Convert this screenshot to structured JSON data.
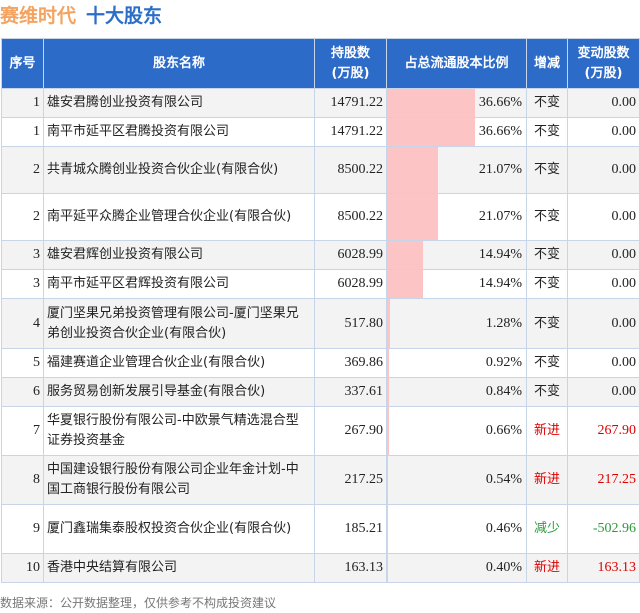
{
  "title": {
    "company": "赛维时代",
    "subtitle": "十大股东"
  },
  "headers": [
    "序号",
    "股东名称",
    "持股数\n(万股)",
    "占总流通股本比例",
    "增减",
    "变动股数\n(万股)"
  ],
  "colors": {
    "header_bg": "#2d6bc9",
    "bar": "#fcc4c4",
    "increase": "#e00000",
    "decrease": "#2a9a3a"
  },
  "rows": [
    {
      "rank": "1",
      "name": "雄安君腾创业投资有限公司",
      "shares": "14791.22",
      "pct": "36.66%",
      "pct_value": 36.66,
      "change": "不变",
      "delta": "0.00",
      "type": "same"
    },
    {
      "rank": "1",
      "name": "南平市延平区君腾投资有限公司",
      "shares": "14791.22",
      "pct": "36.66%",
      "pct_value": 36.66,
      "change": "不变",
      "delta": "0.00",
      "type": "same"
    },
    {
      "rank": "2",
      "name": "共青城众腾创业投资合伙企业(有限合伙)",
      "shares": "8500.22",
      "pct": "21.07%",
      "pct_value": 21.07,
      "change": "不变",
      "delta": "0.00",
      "type": "same"
    },
    {
      "rank": "2",
      "name": "南平延平众腾企业管理合伙企业(有限合伙)",
      "shares": "8500.22",
      "pct": "21.07%",
      "pct_value": 21.07,
      "change": "不变",
      "delta": "0.00",
      "type": "same"
    },
    {
      "rank": "3",
      "name": "雄安君辉创业投资有限公司",
      "shares": "6028.99",
      "pct": "14.94%",
      "pct_value": 14.94,
      "change": "不变",
      "delta": "0.00",
      "type": "same"
    },
    {
      "rank": "3",
      "name": "南平市延平区君辉投资有限公司",
      "shares": "6028.99",
      "pct": "14.94%",
      "pct_value": 14.94,
      "change": "不变",
      "delta": "0.00",
      "type": "same"
    },
    {
      "rank": "4",
      "name": "厦门坚果兄弟投资管理有限公司-厦门坚果兄弟创业投资合伙企业(有限合伙)",
      "shares": "517.80",
      "pct": "1.28%",
      "pct_value": 1.28,
      "change": "不变",
      "delta": "0.00",
      "type": "same"
    },
    {
      "rank": "5",
      "name": "福建赛道企业管理合伙企业(有限合伙)",
      "shares": "369.86",
      "pct": "0.92%",
      "pct_value": 0.92,
      "change": "不变",
      "delta": "0.00",
      "type": "same"
    },
    {
      "rank": "6",
      "name": "服务贸易创新发展引导基金(有限合伙)",
      "shares": "337.61",
      "pct": "0.84%",
      "pct_value": 0.84,
      "change": "不变",
      "delta": "0.00",
      "type": "same"
    },
    {
      "rank": "7",
      "name": "华夏银行股份有限公司-中欧景气精选混合型证券投资基金",
      "shares": "267.90",
      "pct": "0.66%",
      "pct_value": 0.66,
      "change": "新进",
      "delta": "267.90",
      "type": "up"
    },
    {
      "rank": "8",
      "name": "中国建设银行股份有限公司企业年金计划-中国工商银行股份有限公司",
      "shares": "217.25",
      "pct": "0.54%",
      "pct_value": 0.54,
      "change": "新进",
      "delta": "217.25",
      "type": "up"
    },
    {
      "rank": "9",
      "name": "厦门鑫瑞集泰股权投资合伙企业(有限合伙)",
      "shares": "185.21",
      "pct": "0.46%",
      "pct_value": 0.46,
      "change": "减少",
      "delta": "-502.96",
      "type": "down"
    },
    {
      "rank": "10",
      "name": "香港中央结算有限公司",
      "shares": "163.13",
      "pct": "0.40%",
      "pct_value": 0.4,
      "change": "新进",
      "delta": "163.13",
      "type": "up"
    }
  ],
  "footer": "数据来源：公开数据整理，仅供参考不构成投资建议"
}
